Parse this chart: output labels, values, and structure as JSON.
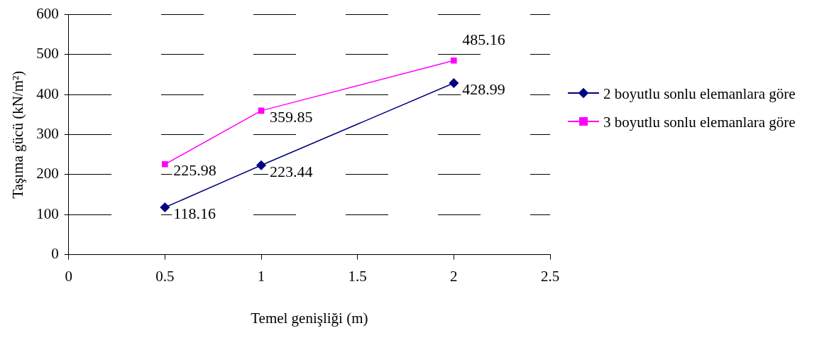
{
  "chart_data": {
    "type": "line",
    "xlabel": "Temel genişliği (m)",
    "ylabel": "Taşıma gücü (kN/m²)",
    "xlim": [
      0,
      2.5
    ],
    "xticks": [
      0,
      0.5,
      1,
      1.5,
      2,
      2.5
    ],
    "ylim": [
      0,
      600
    ],
    "yticks": [
      0,
      100,
      200,
      300,
      400,
      500,
      600
    ],
    "x": [
      0.5,
      1,
      2
    ],
    "grid": "y",
    "legend": "right",
    "data_labels": true,
    "series": [
      {
        "name": "2 boyutlu sonlu elemanlara göre",
        "color": "#000080",
        "marker": "diamond",
        "values": [
          118.16,
          223.44,
          428.99
        ]
      },
      {
        "name": "3 boyutlu sonlu elemanlara göre",
        "color": "#ff00ff",
        "marker": "square",
        "values": [
          225.98,
          359.85,
          485.16
        ]
      }
    ]
  }
}
